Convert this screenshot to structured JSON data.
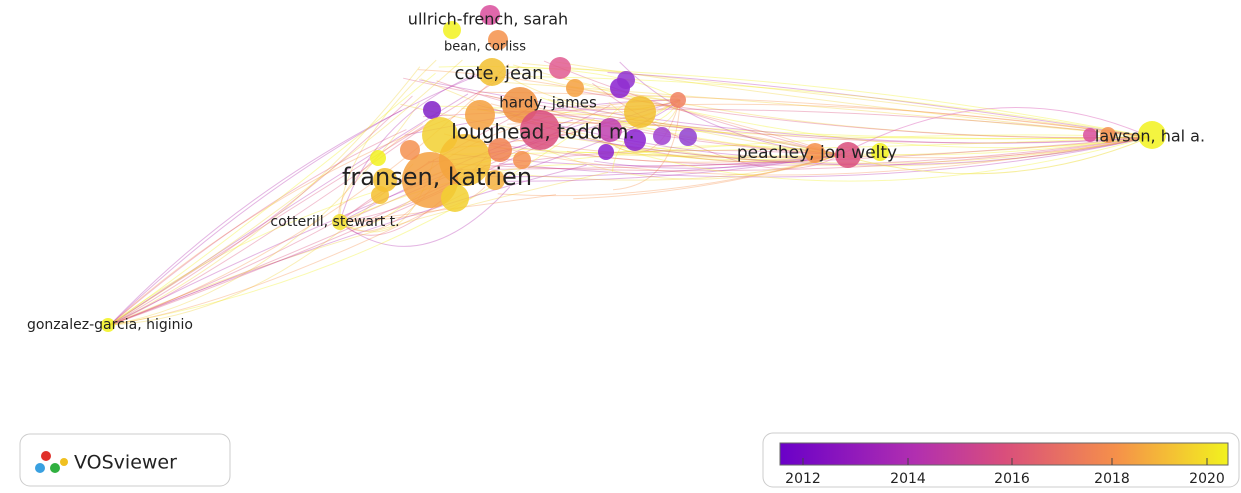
{
  "nodes": [
    {
      "label": "ullrich-french, sarah"
    },
    {
      "label": "bean, corliss"
    },
    {
      "label": "cote, jean"
    },
    {
      "label": "hardy, james"
    },
    {
      "label": "loughead, todd m."
    },
    {
      "label": "peachey, jon welty"
    },
    {
      "label": "lawson, hal a."
    },
    {
      "label": "fransen, katrien"
    },
    {
      "label": "cotterill, stewart t."
    },
    {
      "label": "gonzalez-garcia, higinio"
    }
  ],
  "logo": {
    "text": "VOSviewer"
  },
  "legend": {
    "ticks": [
      2012,
      2014,
      2016,
      2018,
      2020
    ]
  }
}
